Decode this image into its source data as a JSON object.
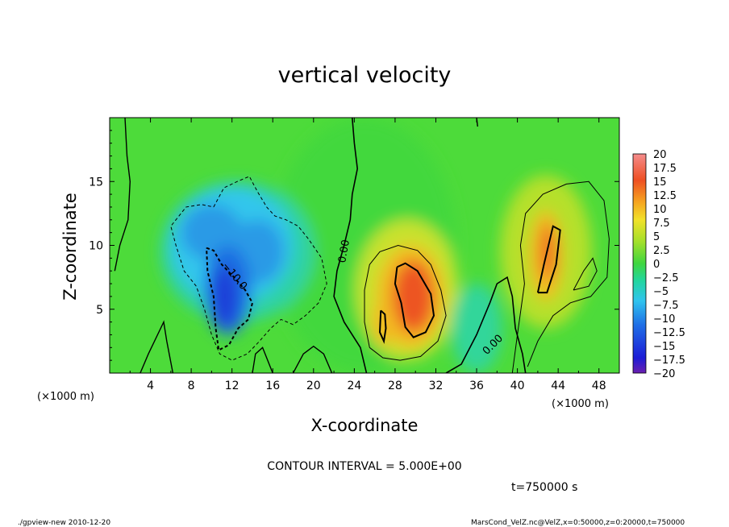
{
  "chart_data": {
    "type": "heatmap",
    "title": "vertical velocity",
    "xlabel": "X-coordinate",
    "ylabel": "Z-coordinate",
    "x_unit": "(×1000 m)",
    "y_unit": "(×1000 m)",
    "xlim": [
      0,
      50
    ],
    "ylim": [
      0,
      20
    ],
    "x_ticks": [
      4,
      8,
      12,
      16,
      20,
      24,
      28,
      32,
      36,
      40,
      44,
      48
    ],
    "x_tick_labels": [
      "4",
      "8",
      "12",
      "16",
      "20",
      "24",
      "28",
      "32",
      "36",
      "40",
      "44",
      "48"
    ],
    "y_ticks": [
      5,
      10,
      15
    ],
    "y_tick_labels": [
      "5",
      "10",
      "15"
    ],
    "colorbar": {
      "min": -20,
      "max": 20,
      "labels": [
        "20",
        "17.5",
        "15",
        "12.5",
        "10",
        "7.5",
        "5",
        "2.5",
        "0",
        "-2.5",
        "-5",
        "-7.5",
        "-10",
        "-12.5",
        "-15",
        "-17.5",
        "-20"
      ]
    },
    "contour_labels": [
      "0.00",
      "0.00",
      "-10.0"
    ],
    "contour_interval_text": "CONTOUR INTERVAL = 5.000E+00",
    "time_text": "t=750000 s",
    "features": [
      {
        "name": "downdraft",
        "x": 11.5,
        "z": 6.5,
        "value": -12.5
      },
      {
        "name": "downdraft-upper",
        "x": 9.0,
        "z": 11.0,
        "value": -8.0
      },
      {
        "name": "updraft",
        "x": 29.5,
        "z": 6.0,
        "value": 12.5
      },
      {
        "name": "updraft-upper",
        "x": 42.5,
        "z": 9.5,
        "value": 10.0
      },
      {
        "name": "weak-downdraft",
        "x": 36.0,
        "z": 3.5,
        "value": -4.0
      }
    ]
  },
  "footer": {
    "left": "./gpview-new  2010-12-20",
    "right": "MarsCond_VelZ.nc@VelZ,x=0:50000,z=0:20000,t=750000"
  }
}
